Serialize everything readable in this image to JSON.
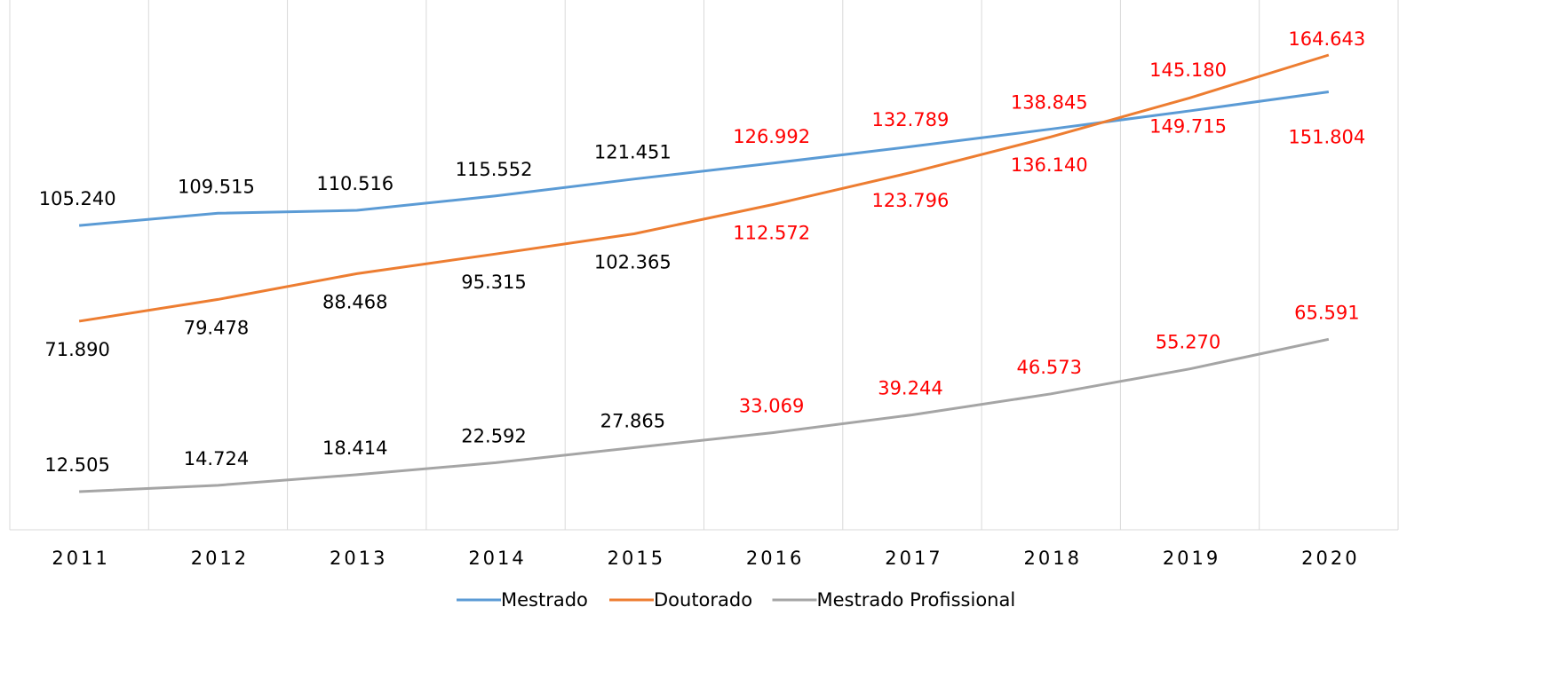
{
  "chart_data": {
    "type": "line",
    "categories": [
      "2011",
      "2012",
      "2013",
      "2014",
      "2015",
      "2016",
      "2017",
      "2018",
      "2019",
      "2020"
    ],
    "grid": true,
    "legend": "bottom",
    "series": [
      {
        "name": "Mestrado",
        "color": "#5b9bd5",
        "values": [
          105240,
          109515,
          110516,
          115552,
          121451,
          126992,
          132789,
          138845,
          145180,
          151804
        ],
        "value_labels": [
          "105.240",
          "109.515",
          "110.516",
          "115.552",
          "121.451",
          "126.992",
          "132.789",
          "138.845",
          "145.180",
          "151.804"
        ],
        "value_label_colors": [
          "#000000",
          "#000000",
          "#000000",
          "#000000",
          "#000000",
          "#ff0000",
          "#ff0000",
          "#ff0000",
          "#ff0000",
          "#ff0000"
        ]
      },
      {
        "name": "Doutorado",
        "color": "#ed7d31",
        "values": [
          71890,
          79478,
          88468,
          95315,
          102365,
          112572,
          123796,
          136140,
          149715,
          164643
        ],
        "value_labels": [
          "71.890",
          "79.478",
          "88.468",
          "95.315",
          "102.365",
          "112.572",
          "123.796",
          "136.140",
          "149.715",
          "164.643"
        ],
        "value_label_colors": [
          "#000000",
          "#000000",
          "#000000",
          "#000000",
          "#000000",
          "#ff0000",
          "#ff0000",
          "#ff0000",
          "#ff0000",
          "#ff0000"
        ]
      },
      {
        "name": "Mestrado Profissional",
        "color": "#a5a5a5",
        "values": [
          12505,
          14724,
          18414,
          22592,
          27865,
          33069,
          39244,
          46573,
          55270,
          65591
        ],
        "value_labels": [
          "12.505",
          "14.724",
          "18.414",
          "22.592",
          "27.865",
          "33.069",
          "39.244",
          "46.573",
          "55.270",
          "65.591"
        ],
        "value_label_colors": [
          "#000000",
          "#000000",
          "#000000",
          "#000000",
          "#000000",
          "#ff0000",
          "#ff0000",
          "#ff0000",
          "#ff0000",
          "#ff0000"
        ]
      }
    ]
  }
}
